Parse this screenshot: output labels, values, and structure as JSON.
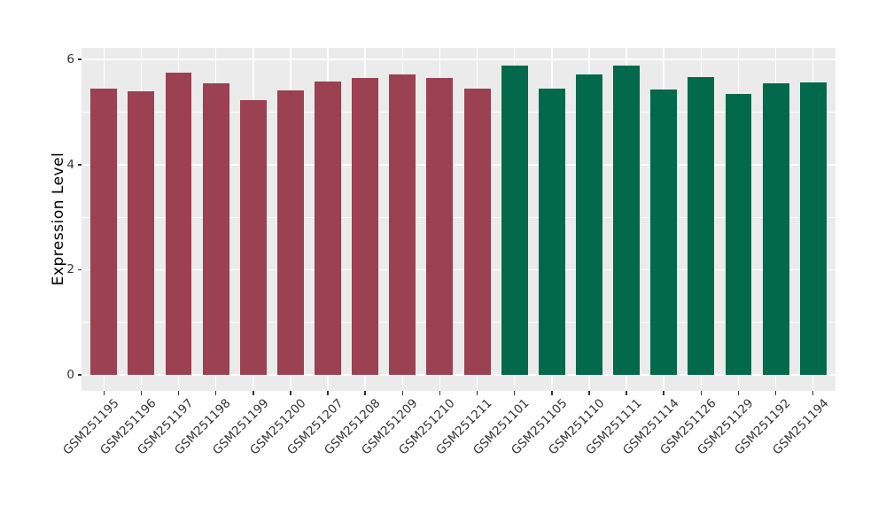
{
  "chart_data": {
    "type": "bar",
    "title": "",
    "xlabel": "",
    "ylabel": "Expression Level",
    "categories": [
      "GSM251195",
      "GSM251196",
      "GSM251197",
      "GSM251198",
      "GSM251199",
      "GSM251200",
      "GSM251207",
      "GSM251208",
      "GSM251209",
      "GSM251210",
      "GSM251211",
      "GSM251101",
      "GSM251105",
      "GSM251110",
      "GSM251111",
      "GSM251114",
      "GSM251126",
      "GSM251129",
      "GSM251192",
      "GSM251194"
    ],
    "values": [
      5.45,
      5.4,
      5.74,
      5.54,
      5.23,
      5.41,
      5.58,
      5.64,
      5.71,
      5.64,
      5.45,
      5.89,
      5.45,
      5.71,
      5.88,
      5.43,
      5.66,
      5.34,
      5.55,
      5.57
    ],
    "bar_colors": [
      "#9B4152",
      "#9B4152",
      "#9B4152",
      "#9B4152",
      "#9B4152",
      "#9B4152",
      "#9B4152",
      "#9B4152",
      "#9B4152",
      "#9B4152",
      "#9B4152",
      "#02694B",
      "#02694B",
      "#02694B",
      "#02694B",
      "#02694B",
      "#02694B",
      "#02694B",
      "#02694B",
      "#02694B"
    ],
    "yticks": [
      0,
      2,
      4,
      6
    ],
    "yticks_minor": [
      1,
      3,
      5
    ],
    "ylim": [
      -0.3,
      6.22
    ],
    "grid": "on",
    "legend": "none",
    "panel_background": "#EBEBEB",
    "grid_color": "#FFFFFF",
    "axis_text_color": "#333333",
    "axis_title_color": "#000000",
    "tick_mark_color": "#333333"
  }
}
